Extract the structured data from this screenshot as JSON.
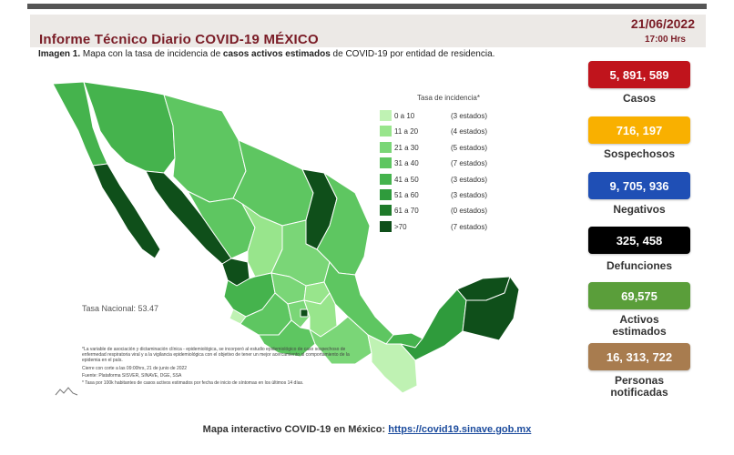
{
  "header": {
    "title": "Informe Técnico Diario COVID-19 MÉXICO",
    "date": "21/06/2022",
    "time": "17:00 Hrs"
  },
  "caption": {
    "label": "Imagen 1.",
    "text_before": " Mapa con la tasa de incidencia de ",
    "text_bold": "casos activos estimados",
    "text_after": " de COVID-19 por entidad de residencia."
  },
  "legend": {
    "title": "Tasa de incidencia*",
    "items": [
      {
        "range": "0 a 10",
        "count": "(3 estados)",
        "color": "#bff2b3"
      },
      {
        "range": "11 a 20",
        "count": "(4 estados)",
        "color": "#98e58c"
      },
      {
        "range": "21 a 30",
        "count": "(5 estados)",
        "color": "#7ad677"
      },
      {
        "range": "31 a 40",
        "count": "(7 estados)",
        "color": "#5ec661"
      },
      {
        "range": "41 a 50",
        "count": "(3 estados)",
        "color": "#45b34d"
      },
      {
        "range": "51 a 60",
        "count": "(3 estados)",
        "color": "#2f9b3c"
      },
      {
        "range": "61 a 70",
        "count": "(0 estados)",
        "color": "#1e7a2a"
      },
      {
        "range": ">70",
        "count": "(7 estados)",
        "color": "#0f4f1a"
      }
    ]
  },
  "map": {
    "tasa_nacional": "Tasa Nacional: 53.47",
    "notes": [
      "*La variable de asociación y dictaminación clínica - epidemiológica, se incorporó al estudio epidemiológico de caso sospechoso de enfermedad respiratoria viral y a la vigilancia epidemiológica con el objetivo de tener un mejor acercamiento al comportamiento de la epidemia en el país.",
      "Cierre con corte a las 09:00hrs, 21 de junio de 2022",
      "Fuente: Plataforma SISVER, SINAVE, DGE, SSA",
      "* Tasa por 100k habitantes de casos activos estimados por fecha de inicio de síntomas en los últimos 14 días."
    ]
  },
  "stats": [
    {
      "value": "5, 891, 589",
      "label": "Casos",
      "color": "#c0141c"
    },
    {
      "value": "716, 197",
      "label": "Sospechosos",
      "color": "#f9b000"
    },
    {
      "value": "9, 705, 936",
      "label": "Negativos",
      "color": "#1f4fb5"
    },
    {
      "value": "325, 458",
      "label": "Defunciones",
      "color": "#000000"
    },
    {
      "value": "69,575",
      "label": "Activos estimados",
      "color": "#5a9e3a"
    },
    {
      "value": "16, 313, 722",
      "label": "Personas notificadas",
      "color": "#a87c4f"
    }
  ],
  "footer": {
    "text": "Mapa interactivo COVID-19 en México: ",
    "link": "https://covid19.sinave.gob.mx"
  }
}
